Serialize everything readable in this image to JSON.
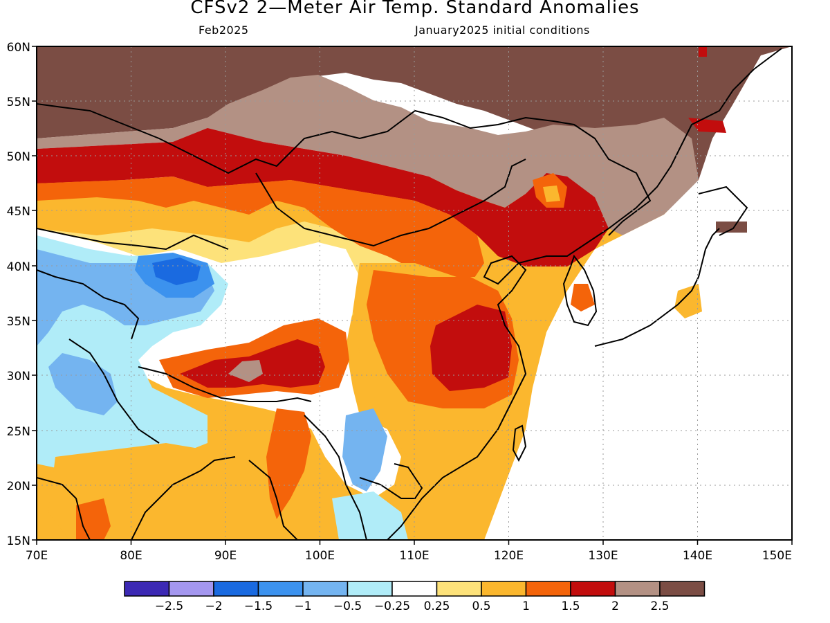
{
  "header": {
    "title": "CFSv2 2—Meter Air Temp. Standard Anomalies",
    "valid_month": "Feb2025",
    "init": "January2025 initial conditions"
  },
  "axes": {
    "lat_labels": [
      "60N",
      "55N",
      "50N",
      "45N",
      "40N",
      "35N",
      "30N",
      "25N",
      "20N",
      "15N"
    ],
    "lon_labels": [
      "70E",
      "80E",
      "90E",
      "100E",
      "110E",
      "120E",
      "130E",
      "140E",
      "150E"
    ]
  },
  "colorbar": {
    "colors": [
      "#3c29b4",
      "#a497ef",
      "#1a6ae0",
      "#3c92ee",
      "#74b4f0",
      "#b0ecf8",
      "#ffffff",
      "#fde27a",
      "#fbb72e",
      "#f4640a",
      "#c20d0d",
      "#b39184",
      "#7b4d44"
    ],
    "labels": [
      "−2.5",
      "−2",
      "−1.5",
      "−1",
      "−0.5",
      "−0.25",
      "0.25",
      "0.5",
      "1",
      "1.5",
      "2",
      "2.5"
    ]
  },
  "colors": {
    "brown_2p5": "#7b4d44",
    "taupe_2": "#b39184",
    "red_15": "#c20d0d",
    "orange_1": "#f4640a",
    "gold_05": "#fbb72e",
    "yellow_025": "#fde27a",
    "white": "#ffffff",
    "ltcyan_m025": "#b0ecf8",
    "ltblue_m05": "#74b4f0",
    "blue_m1": "#3c92ee",
    "dkblue_m15": "#1a6ae0"
  }
}
